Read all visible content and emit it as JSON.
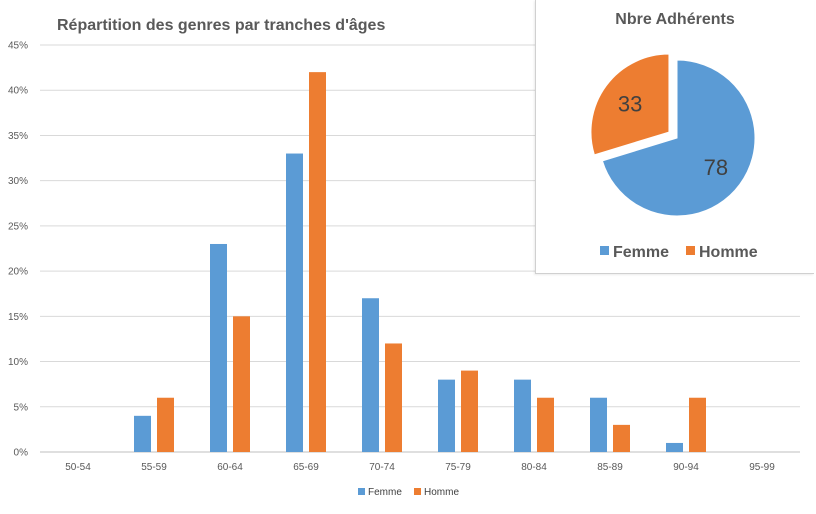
{
  "chart_data": [
    {
      "type": "bar",
      "title": "Répartition des genres par tranches d'âges",
      "categories": [
        "50-54",
        "55-59",
        "60-64",
        "65-69",
        "70-74",
        "75-79",
        "80-84",
        "85-89",
        "90-94",
        "95-99"
      ],
      "series": [
        {
          "name": "Femme",
          "values": [
            0,
            4,
            23,
            33,
            17,
            8,
            8,
            6,
            1,
            0
          ]
        },
        {
          "name": "Homme",
          "values": [
            0,
            6,
            15,
            42,
            12,
            9,
            6,
            3,
            6,
            0
          ]
        }
      ],
      "yticks": [
        "0%",
        "5%",
        "10%",
        "15%",
        "20%",
        "25%",
        "30%",
        "35%",
        "40%",
        "45%"
      ],
      "ylim": [
        0,
        45
      ],
      "unit": "%",
      "grid": true,
      "legend": "bottom",
      "colors": {
        "Femme": "#5b9bd5",
        "Homme": "#ed7d31"
      }
    },
    {
      "type": "pie",
      "title": "Nbre Adhérents",
      "categories": [
        "Femme",
        "Homme"
      ],
      "values": [
        78,
        33
      ],
      "legend": "bottom",
      "colors": {
        "Femme": "#5b9bd5",
        "Homme": "#ed7d31"
      }
    }
  ]
}
